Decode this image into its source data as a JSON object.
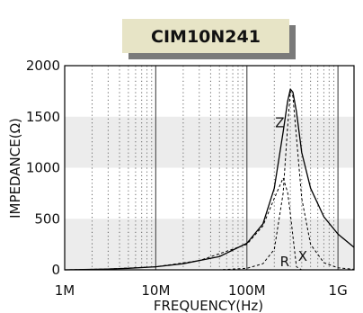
{
  "chart_data": {
    "type": "line",
    "title": "CIM10N241",
    "xlabel": "FREQUENCY(Hz)",
    "ylabel": "IMPEDANCE(Ω)",
    "xscale": "log",
    "xlim": [
      1000000,
      1500000000
    ],
    "ylim": [
      0,
      2000
    ],
    "x_ticks": [
      1000000,
      10000000,
      100000000,
      1000000000
    ],
    "x_tick_labels": [
      "1M",
      "10M",
      "100M",
      "1G"
    ],
    "y_ticks": [
      0,
      500,
      1000,
      1500,
      2000
    ],
    "y_tick_labels": [
      "0",
      "500",
      "1000",
      "1500",
      "2000"
    ],
    "grid": "vertical dotted minor lines, solid lines at decades, alternating shaded horizontal bands",
    "series": [
      {
        "name": "Z",
        "style": "solid",
        "x": [
          1000000,
          3000000,
          5000000,
          10000000,
          20000000,
          50000000,
          100000000,
          150000000,
          200000000,
          250000000,
          280000000,
          300000000,
          320000000,
          350000000,
          400000000,
          500000000,
          700000000,
          1000000000,
          1500000000
        ],
        "y": [
          0,
          8,
          15,
          30,
          60,
          130,
          260,
          450,
          800,
          1350,
          1650,
          1770,
          1740,
          1550,
          1150,
          800,
          520,
          350,
          220
        ]
      },
      {
        "name": "R",
        "style": "dashed",
        "x": [
          1000000,
          50000000,
          100000000,
          150000000,
          200000000,
          250000000,
          280000000,
          300000000,
          320000000,
          350000000,
          400000000,
          500000000,
          700000000,
          1000000000,
          1500000000
        ],
        "y": [
          0,
          0,
          15,
          60,
          200,
          750,
          1400,
          1750,
          1700,
          1300,
          700,
          250,
          70,
          20,
          5
        ]
      },
      {
        "name": "X",
        "style": "dashed",
        "x": [
          1000000,
          3000000,
          10000000,
          30000000,
          100000000,
          150000000,
          200000000,
          250000000,
          280000000,
          300000000,
          320000000,
          350000000,
          400000000,
          500000000,
          700000000,
          1000000000,
          1500000000
        ],
        "y": [
          0,
          8,
          30,
          90,
          250,
          430,
          700,
          900,
          760,
          550,
          330,
          30,
          0,
          0,
          0,
          0,
          0
        ]
      }
    ],
    "curve_labels": [
      {
        "name": "Z",
        "x": 230000000,
        "y": 1440
      },
      {
        "name": "R",
        "x": 260000000,
        "y": 80
      },
      {
        "name": "X",
        "x": 410000000,
        "y": 130
      }
    ]
  }
}
